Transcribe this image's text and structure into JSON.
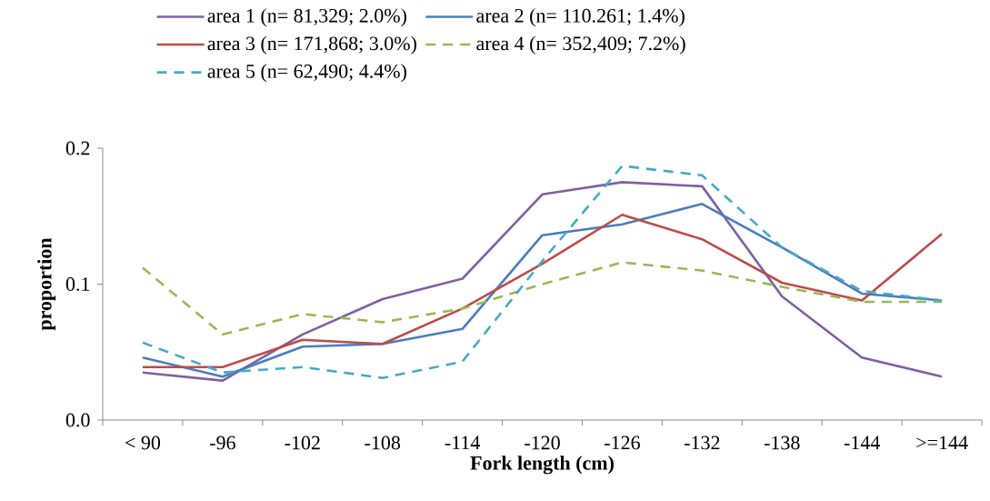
{
  "chart_data": {
    "type": "line",
    "xlabel": "Fork length (cm)",
    "ylabel": "proportion",
    "categories": [
      "< 90",
      "-96",
      "-102",
      "-108",
      "-114",
      "-120",
      "-126",
      "-132",
      "-138",
      "-144",
      ">=144"
    ],
    "ylim": [
      0,
      0.2
    ],
    "yticks": [
      {
        "value": 0,
        "label": "0.0"
      },
      {
        "value": 0.1,
        "label": "0.1"
      },
      {
        "value": 0.2,
        "label": "0.2"
      }
    ],
    "grid": false,
    "legend": "top",
    "marker": "none",
    "series": [
      {
        "name": "area 1 (n= 81,329; 2.0%)",
        "color": "#7f60a2",
        "line_style": "solid",
        "values": [
          0.035,
          0.029,
          0.063,
          0.089,
          0.104,
          0.166,
          0.175,
          0.172,
          0.091,
          0.046,
          0.032
        ]
      },
      {
        "name": "area 2 (n= 110.261; 1.4%)",
        "color": "#4a7ebb",
        "line_style": "solid",
        "values": [
          0.046,
          0.032,
          0.054,
          0.056,
          0.067,
          0.136,
          0.144,
          0.159,
          0.127,
          0.093,
          0.088
        ]
      },
      {
        "name": "area 3 (n= 171,868; 3.0%)",
        "color": "#be4b48",
        "line_style": "solid",
        "values": [
          0.039,
          0.039,
          0.059,
          0.056,
          0.082,
          0.115,
          0.151,
          0.133,
          0.101,
          0.088,
          0.137
        ]
      },
      {
        "name": "area 4 (n= 352,409; 7.2%)",
        "color": "#98b954",
        "line_style": "dashed",
        "values": [
          0.112,
          0.063,
          0.078,
          0.072,
          0.082,
          0.1,
          0.116,
          0.11,
          0.098,
          0.087,
          0.087
        ]
      },
      {
        "name": "area 5 (n= 62,490; 4.4%)",
        "color": "#46aac5",
        "line_style": "dashed",
        "values": [
          0.057,
          0.035,
          0.039,
          0.031,
          0.043,
          0.117,
          0.187,
          0.18,
          0.127,
          0.095,
          0.088
        ]
      }
    ]
  }
}
